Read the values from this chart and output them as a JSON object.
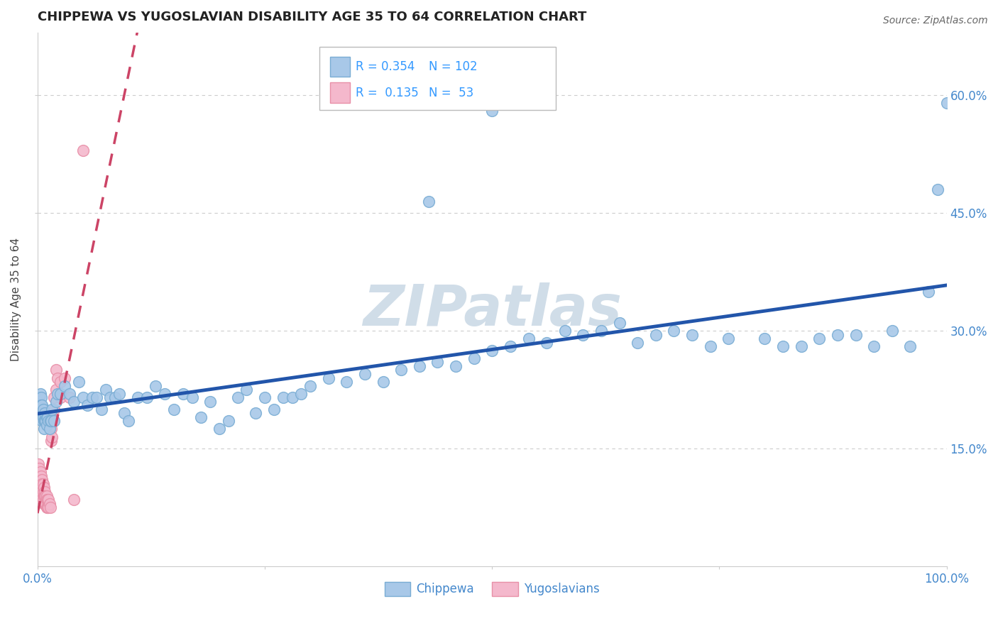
{
  "title": "CHIPPEWA VS YUGOSLAVIAN DISABILITY AGE 35 TO 64 CORRELATION CHART",
  "source_text": "Source: ZipAtlas.com",
  "ylabel": "Disability Age 35 to 64",
  "xlim": [
    0.0,
    1.0
  ],
  "ylim": [
    0.0,
    0.68
  ],
  "xticks": [
    0.0,
    0.25,
    0.5,
    0.75,
    1.0
  ],
  "xtick_labels": [
    "0.0%",
    "",
    "",
    "",
    "100.0%"
  ],
  "yticks": [
    0.15,
    0.3,
    0.45,
    0.6
  ],
  "ytick_labels": [
    "15.0%",
    "30.0%",
    "45.0%",
    "60.0%"
  ],
  "grid_color": "#cccccc",
  "background_color": "#ffffff",
  "chippewa_color": "#a8c8e8",
  "chippewa_edge_color": "#7aadd4",
  "yugoslavian_color": "#f4b8cc",
  "yugoslavian_edge_color": "#e890a8",
  "chippewa_R": 0.354,
  "chippewa_N": 102,
  "yugoslavian_R": 0.135,
  "yugoslavian_N": 53,
  "chippewa_line_color": "#2255aa",
  "yugoslavian_line_color": "#cc4466",
  "watermark_color": "#d0dde8",
  "chippewa_x": [
    0.001,
    0.002,
    0.002,
    0.003,
    0.003,
    0.004,
    0.004,
    0.004,
    0.005,
    0.005,
    0.005,
    0.006,
    0.006,
    0.007,
    0.007,
    0.008,
    0.008,
    0.009,
    0.01,
    0.01,
    0.011,
    0.012,
    0.013,
    0.014,
    0.015,
    0.016,
    0.018,
    0.02,
    0.022,
    0.025,
    0.03,
    0.035,
    0.04,
    0.045,
    0.05,
    0.055,
    0.06,
    0.065,
    0.07,
    0.075,
    0.08,
    0.085,
    0.09,
    0.095,
    0.1,
    0.11,
    0.12,
    0.13,
    0.14,
    0.15,
    0.16,
    0.17,
    0.18,
    0.19,
    0.2,
    0.21,
    0.22,
    0.23,
    0.24,
    0.25,
    0.26,
    0.27,
    0.28,
    0.29,
    0.3,
    0.32,
    0.34,
    0.36,
    0.38,
    0.4,
    0.42,
    0.44,
    0.46,
    0.48,
    0.5,
    0.52,
    0.54,
    0.56,
    0.58,
    0.6,
    0.62,
    0.64,
    0.66,
    0.68,
    0.7,
    0.72,
    0.74,
    0.76,
    0.8,
    0.82,
    0.84,
    0.86,
    0.88,
    0.9,
    0.92,
    0.94,
    0.96,
    0.98,
    0.99,
    1.0,
    0.5,
    0.43
  ],
  "chippewa_y": [
    0.21,
    0.215,
    0.2,
    0.22,
    0.205,
    0.215,
    0.205,
    0.195,
    0.205,
    0.195,
    0.185,
    0.2,
    0.19,
    0.185,
    0.175,
    0.195,
    0.185,
    0.185,
    0.19,
    0.18,
    0.19,
    0.185,
    0.175,
    0.185,
    0.185,
    0.2,
    0.185,
    0.21,
    0.22,
    0.22,
    0.23,
    0.22,
    0.21,
    0.235,
    0.215,
    0.205,
    0.215,
    0.215,
    0.2,
    0.225,
    0.215,
    0.215,
    0.22,
    0.195,
    0.185,
    0.215,
    0.215,
    0.23,
    0.22,
    0.2,
    0.22,
    0.215,
    0.19,
    0.21,
    0.175,
    0.185,
    0.215,
    0.225,
    0.195,
    0.215,
    0.2,
    0.215,
    0.215,
    0.22,
    0.23,
    0.24,
    0.235,
    0.245,
    0.235,
    0.25,
    0.255,
    0.26,
    0.255,
    0.265,
    0.275,
    0.28,
    0.29,
    0.285,
    0.3,
    0.295,
    0.3,
    0.31,
    0.285,
    0.295,
    0.3,
    0.295,
    0.28,
    0.29,
    0.29,
    0.28,
    0.28,
    0.29,
    0.295,
    0.295,
    0.28,
    0.3,
    0.28,
    0.35,
    0.48,
    0.59,
    0.58,
    0.465
  ],
  "yugoslavian_x": [
    0.001,
    0.001,
    0.001,
    0.002,
    0.002,
    0.002,
    0.002,
    0.003,
    0.003,
    0.003,
    0.003,
    0.004,
    0.004,
    0.004,
    0.005,
    0.005,
    0.005,
    0.005,
    0.006,
    0.006,
    0.006,
    0.007,
    0.007,
    0.007,
    0.008,
    0.008,
    0.008,
    0.009,
    0.009,
    0.01,
    0.01,
    0.01,
    0.011,
    0.011,
    0.012,
    0.012,
    0.013,
    0.014,
    0.015,
    0.015,
    0.016,
    0.016,
    0.018,
    0.018,
    0.02,
    0.02,
    0.022,
    0.025,
    0.025,
    0.03,
    0.035,
    0.04,
    0.05
  ],
  "yugoslavian_y": [
    0.13,
    0.115,
    0.105,
    0.125,
    0.115,
    0.1,
    0.09,
    0.12,
    0.11,
    0.1,
    0.09,
    0.115,
    0.105,
    0.095,
    0.11,
    0.105,
    0.095,
    0.085,
    0.105,
    0.095,
    0.085,
    0.1,
    0.09,
    0.08,
    0.095,
    0.09,
    0.08,
    0.09,
    0.08,
    0.09,
    0.085,
    0.075,
    0.085,
    0.075,
    0.085,
    0.075,
    0.08,
    0.075,
    0.175,
    0.16,
    0.19,
    0.165,
    0.215,
    0.2,
    0.25,
    0.225,
    0.24,
    0.215,
    0.235,
    0.24,
    0.215,
    0.085,
    0.53
  ]
}
